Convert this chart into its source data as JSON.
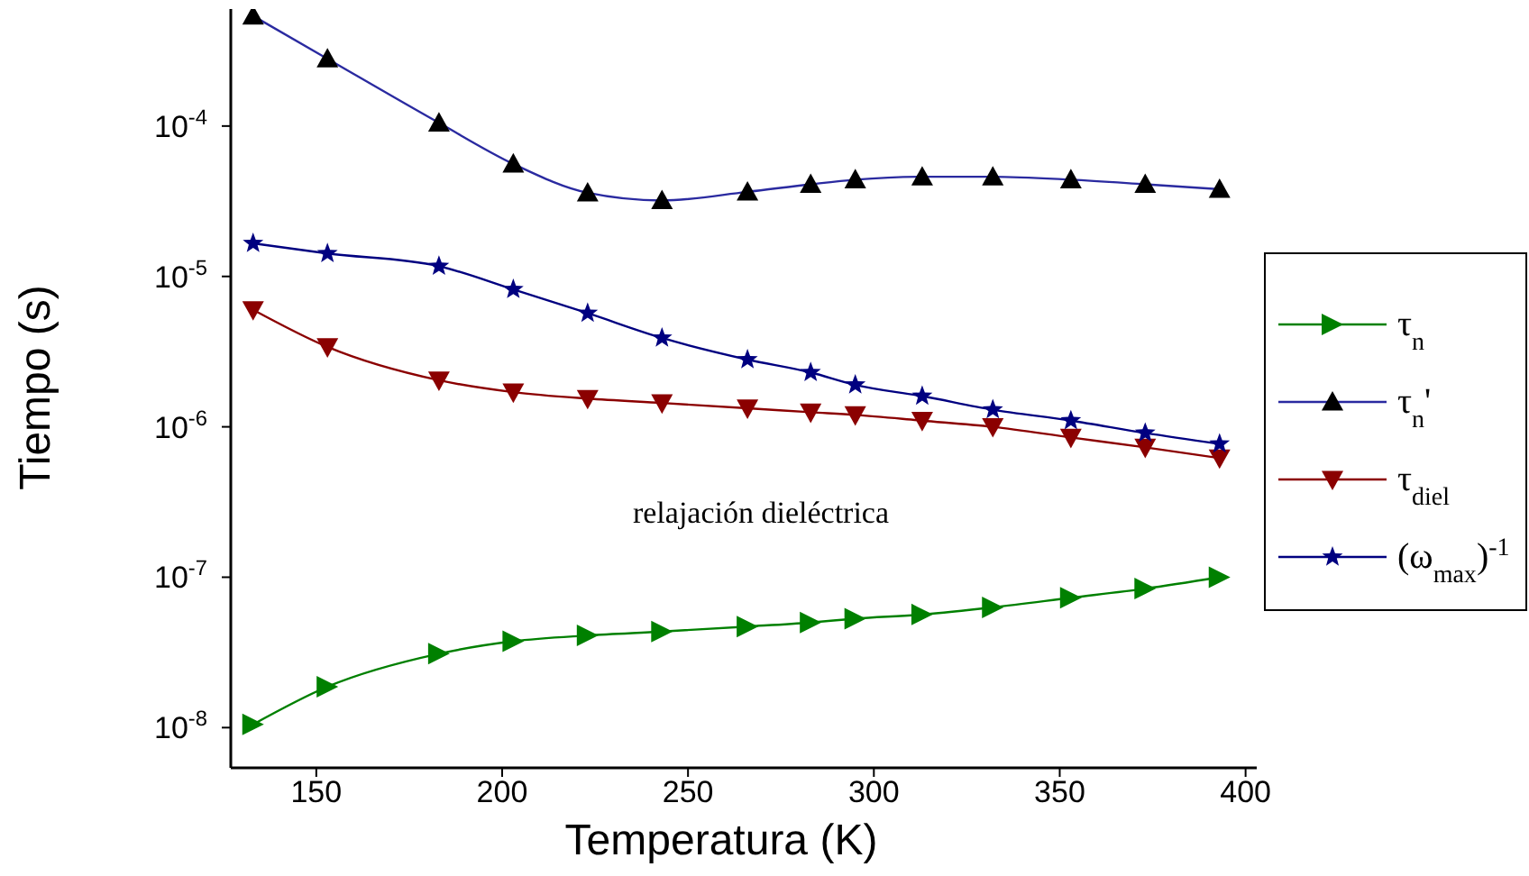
{
  "chart_data": {
    "type": "line",
    "xlabel": "Temperatura (K)",
    "ylabel": "Tiempo (s)",
    "log": "y",
    "x": [
      133,
      153,
      183,
      203,
      223,
      243,
      266,
      283,
      295,
      313,
      332,
      353,
      373,
      393
    ],
    "xlim": [
      127,
      403
    ],
    "xticks": [
      150,
      200,
      250,
      300,
      350,
      400
    ],
    "ylim": [
      5.4e-09,
      0.0006
    ],
    "yticks": [
      {
        "value": 1e-08,
        "label": "10$^{-8}$"
      },
      {
        "value": 1e-07,
        "label": "10$^{-7}$"
      },
      {
        "value": 1e-06,
        "label": "10$^{-6}$"
      },
      {
        "value": 1e-05,
        "label": "10$^{-5}$"
      },
      {
        "value": 0.0001,
        "label": "10$^{-4}$"
      }
    ],
    "legend": "right",
    "annotations": [
      "relajación dieléctrica"
    ],
    "series": [
      {
        "name": "τ$_{n}$",
        "color": "#008000",
        "marker": "triangle",
        "values": [
          1.05e-08,
          1.87e-08,
          3.1e-08,
          3.75e-08,
          4.1e-08,
          4.35e-08,
          4.7e-08,
          5e-08,
          5.3e-08,
          5.65e-08,
          6.3e-08,
          7.3e-08,
          8.4e-08,
          1e-07
        ]
      },
      {
        "name": "τ$_{n}$'",
        "color": "#2a2aa0",
        "marker": "triangle",
        "values": [
          0.00054,
          0.00028,
          0.000105,
          5.6e-05,
          3.6e-05,
          3.2e-05,
          3.65e-05,
          4.1e-05,
          4.4e-05,
          4.6e-05,
          4.6e-05,
          4.4e-05,
          4.1e-05,
          3.8e-05
        ]
      },
      {
        "name": "τ$_{diel}$",
        "color": "#8b0000",
        "marker": "triangle",
        "values": [
          6e-06,
          3.4e-06,
          2.04e-06,
          1.7e-06,
          1.54e-06,
          1.44e-06,
          1.33e-06,
          1.25e-06,
          1.2e-06,
          1.1e-06,
          1e-06,
          8.5e-07,
          7.3e-07,
          6.2e-07
        ]
      },
      {
        "name": "(ω$_{max}$)$^{-1}$",
        "color": "#000080",
        "marker": "star",
        "values": [
          1.66e-05,
          1.42e-05,
          1.17e-05,
          8.2e-06,
          5.7e-06,
          3.9e-06,
          2.8e-06,
          2.3e-06,
          1.9e-06,
          1.6e-06,
          1.3e-06,
          1.1e-06,
          9.1e-07,
          7.7e-07
        ]
      }
    ]
  }
}
